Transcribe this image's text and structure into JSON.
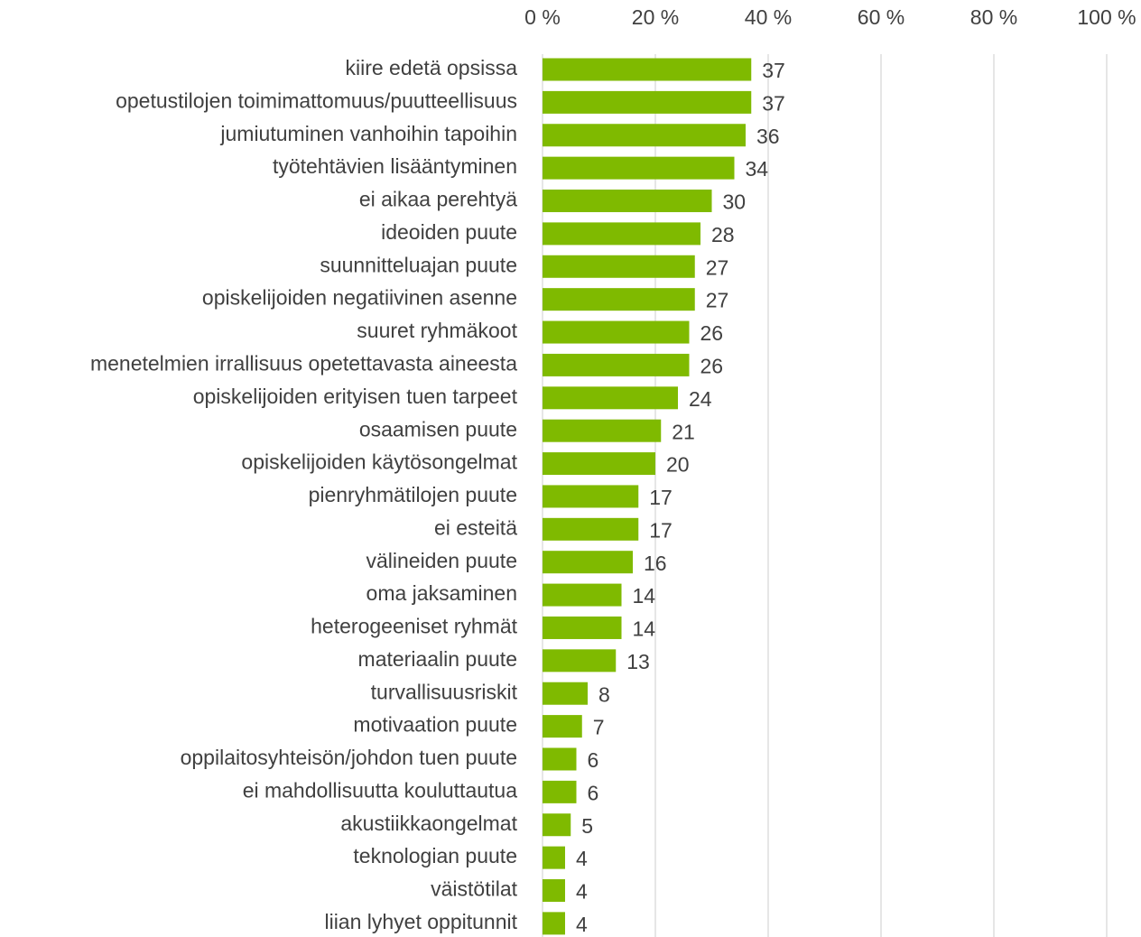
{
  "chart_data": {
    "type": "bar",
    "orientation": "horizontal",
    "categories": [
      "kiire edetä opsissa",
      "opetustilojen toimimattomuus/puutteellisuus",
      "jumiutuminen vanhoihin tapoihin",
      "työtehtävien lisääntyminen",
      "ei aikaa perehtyä",
      "ideoiden puute",
      "suunnitteluajan puute",
      "opiskelijoiden negatiivinen asenne",
      "suuret ryhmäkoot",
      "menetelmien irrallisuus opetettavasta aineesta",
      "opiskelijoiden erityisen tuen tarpeet",
      "osaamisen puute",
      "opiskelijoiden käytösongelmat",
      "pienryhmätilojen puute",
      "ei esteitä",
      "välineiden puute",
      "oma jaksaminen",
      "heterogeeniset ryhmät",
      "materiaalin puute",
      "turvallisuusriskit",
      "motivaation puute",
      "oppilaitosyhteisön/johdon tuen puute",
      "ei mahdollisuutta kouluttautua",
      "akustiikkaongelmat",
      "teknologian puute",
      "väistötilat",
      "liian lyhyet oppitunnit"
    ],
    "values": [
      37,
      37,
      36,
      34,
      30,
      28,
      27,
      27,
      26,
      26,
      24,
      21,
      20,
      17,
      17,
      16,
      14,
      14,
      13,
      8,
      7,
      6,
      6,
      5,
      4,
      4,
      4
    ],
    "color": "#7fba00",
    "xlim": [
      0,
      100
    ],
    "xticks": [
      {
        "value": 0,
        "label": "0 %"
      },
      {
        "value": 20,
        "label": "20 %"
      },
      {
        "value": 40,
        "label": "40 %"
      },
      {
        "value": 60,
        "label": "60 %"
      },
      {
        "value": 80,
        "label": "80 %"
      },
      {
        "value": 100,
        "label": "100 %"
      }
    ],
    "grid": true
  }
}
